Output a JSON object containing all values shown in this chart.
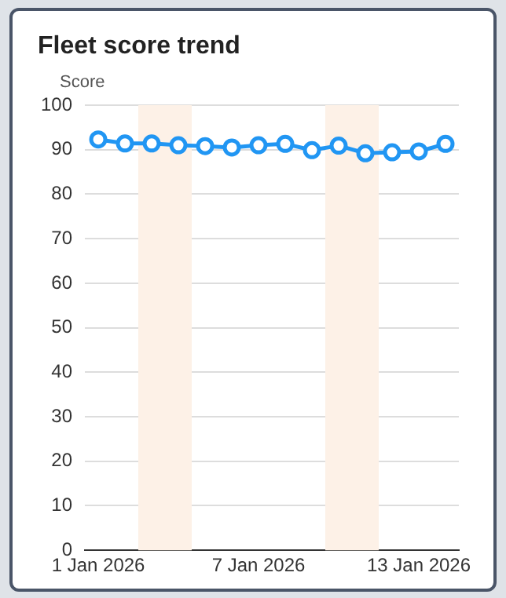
{
  "chart_data": {
    "type": "line",
    "title": "Fleet score trend",
    "ylabel": "Score",
    "x": [
      "2026-01-01",
      "2026-01-02",
      "2026-01-03",
      "2026-01-04",
      "2026-01-05",
      "2026-01-06",
      "2026-01-07",
      "2026-01-08",
      "2026-01-09",
      "2026-01-10",
      "2026-01-11",
      "2026-01-12",
      "2026-01-13",
      "2026-01-14"
    ],
    "series": [
      {
        "color": "#2196f3",
        "values": [
          92.3,
          91.4,
          91.4,
          91.0,
          90.8,
          90.5,
          91.0,
          91.3,
          89.9,
          90.9,
          89.2,
          89.4,
          89.6,
          91.3
        ]
      }
    ],
    "xlim": [
      "2025-12-31T12:00",
      "2026-01-14T12:00"
    ],
    "xticks": [
      {
        "value": "2026-01-01",
        "label": "1 Jan 2026"
      },
      {
        "value": "2026-01-07",
        "label": "7 Jan 2026"
      },
      {
        "value": "2026-01-13",
        "label": "13 Jan 2026"
      }
    ],
    "ylim": [
      0,
      100
    ],
    "yticks": [
      0,
      10,
      20,
      30,
      40,
      50,
      60,
      70,
      80,
      90,
      100
    ],
    "bands": [
      {
        "axis": "x",
        "from": "2026-01-02T12:00",
        "to": "2026-01-04T12:00",
        "color": "#fdf1e7"
      },
      {
        "axis": "x",
        "from": "2026-01-09T12:00",
        "to": "2026-01-11T12:00",
        "color": "#fdf1e7"
      }
    ],
    "grid": "y",
    "marker": "circle",
    "line_style": "solid",
    "legend": false
  }
}
